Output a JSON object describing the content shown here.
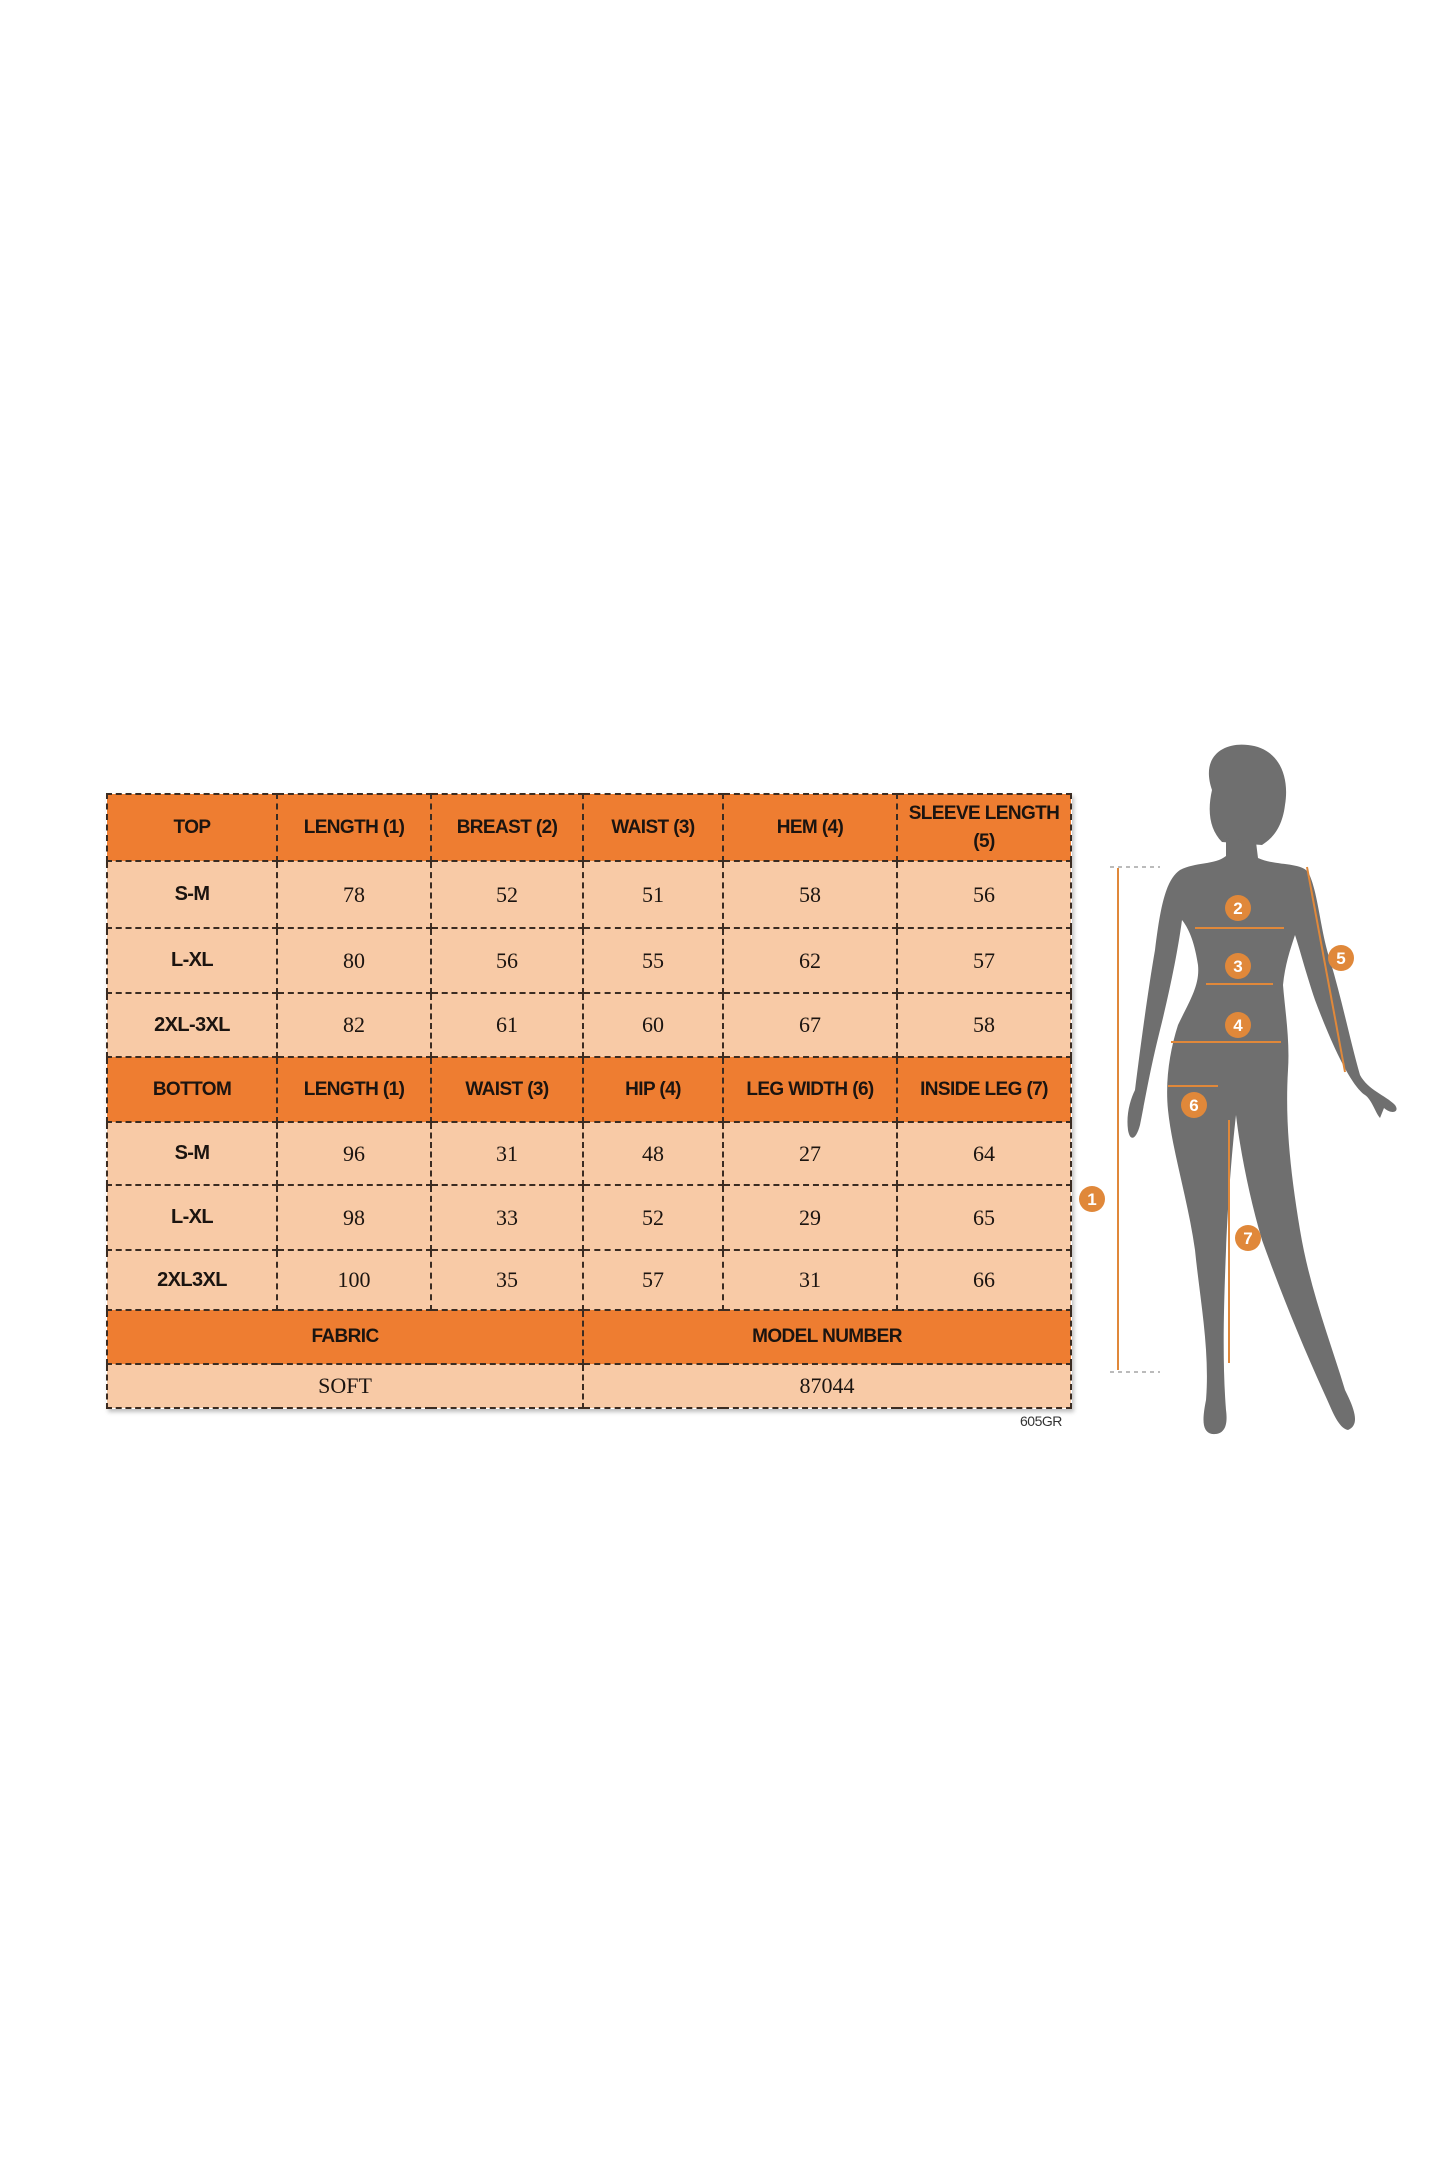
{
  "table": {
    "top_header": [
      "TOP",
      "LENGTH (1)",
      "BREAST (2)",
      "WAIST (3)",
      "HEM (4)",
      "SLEEVE LENGTH (5)"
    ],
    "top_rows": [
      [
        "S-M",
        "78",
        "52",
        "51",
        "58",
        "56"
      ],
      [
        "L-XL",
        "80",
        "56",
        "55",
        "62",
        "57"
      ],
      [
        "2XL-3XL",
        "82",
        "61",
        "60",
        "67",
        "58"
      ]
    ],
    "bottom_header": [
      "BOTTOM",
      "LENGTH (1)",
      "WAIST (3)",
      "HIP (4)",
      "LEG WIDTH (6)",
      "INSIDE LEG (7)"
    ],
    "bottom_rows": [
      [
        "S-M",
        "96",
        "31",
        "48",
        "27",
        "64"
      ],
      [
        "L-XL",
        "98",
        "33",
        "52",
        "29",
        "65"
      ],
      [
        "2XL3XL",
        "100",
        "35",
        "57",
        "31",
        "66"
      ]
    ],
    "footer_header": [
      "FABRIC",
      "MODEL NUMBER"
    ],
    "footer_values": [
      "SOFT",
      "87044"
    ]
  },
  "product_code": "605GR",
  "figure": {
    "markers": [
      "1",
      "2",
      "3",
      "4",
      "5",
      "6",
      "7"
    ]
  },
  "colors": {
    "header": "#ee7d31",
    "cell": "#f8caa6",
    "silhouette": "#6f6f6f",
    "annotation": "#e0883a"
  }
}
